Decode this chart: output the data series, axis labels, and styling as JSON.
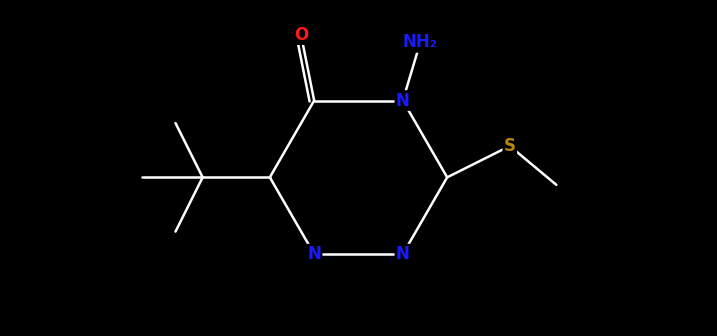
{
  "background_color": "#000000",
  "label_colors": {
    "N": "#1A1AFF",
    "O": "#FF1A1A",
    "S": "#B8860B",
    "NH2": "#1A1AFF"
  },
  "bond_color": "#FFFFFF",
  "figsize": [
    7.17,
    3.36
  ],
  "dpi": 100,
  "lw": 1.8
}
